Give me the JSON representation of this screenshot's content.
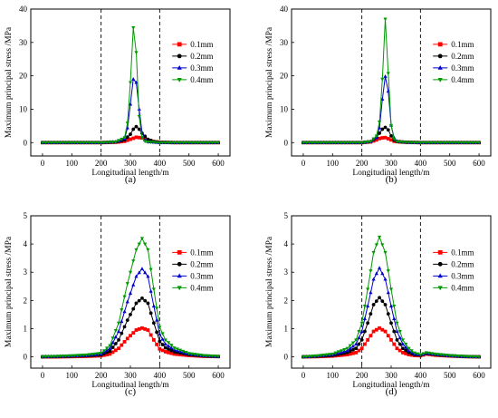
{
  "figure": {
    "series_meta": [
      {
        "name": "0.1mm",
        "color": "#ff0000",
        "marker": "square"
      },
      {
        "name": "0.2mm",
        "color": "#000000",
        "marker": "circle"
      },
      {
        "name": "0.3mm",
        "color": "#0000cc",
        "marker": "triangle-up"
      },
      {
        "name": "0.4mm",
        "color": "#009900",
        "marker": "triangle-down"
      }
    ]
  },
  "chart_data": [
    {
      "type": "line",
      "panel_label": "(a)",
      "xlabel": "Longitudinal length/m",
      "ylabel": "Maximum principal stress /MPa",
      "xlim": [
        -40,
        640
      ],
      "ylim": [
        -4,
        40
      ],
      "xticks": [
        0,
        100,
        200,
        300,
        400,
        500,
        600
      ],
      "yticks": [
        0,
        10,
        20,
        30,
        40
      ],
      "vlines": [
        200,
        400
      ],
      "legend_position": "right",
      "series": [
        {
          "name": "0.1mm",
          "x": [
            0,
            100,
            200,
            250,
            280,
            300,
            320,
            340,
            360,
            380,
            400,
            450,
            500,
            600
          ],
          "y": [
            0,
            0,
            0,
            0.1,
            0.4,
            1.0,
            1.6,
            1.4,
            0.8,
            0.3,
            0.1,
            0,
            0,
            0
          ]
        },
        {
          "name": "0.2mm",
          "x": [
            0,
            100,
            200,
            250,
            280,
            300,
            310,
            320,
            330,
            340,
            360,
            380,
            400,
            450,
            500,
            600
          ],
          "y": [
            0,
            0,
            0,
            0.2,
            0.8,
            2.5,
            4.0,
            4.8,
            4.0,
            2.8,
            1.0,
            0.3,
            0.1,
            0,
            0,
            0
          ]
        },
        {
          "name": "0.3mm",
          "x": [
            0,
            100,
            200,
            250,
            280,
            295,
            305,
            315,
            325,
            335,
            345,
            360,
            380,
            400,
            450,
            500,
            600
          ],
          "y": [
            0,
            0,
            0,
            0.2,
            1.2,
            6.0,
            17.0,
            21.0,
            15.0,
            5.0,
            1.0,
            0.3,
            0.1,
            0,
            0,
            0,
            0
          ]
        },
        {
          "name": "0.4mm",
          "x": [
            0,
            100,
            200,
            250,
            280,
            295,
            305,
            312,
            320,
            328,
            335,
            345,
            360,
            380,
            400,
            450,
            500,
            600
          ],
          "y": [
            0,
            0,
            0,
            0.2,
            1.5,
            8.0,
            28.0,
            37.0,
            27.0,
            10.0,
            2.5,
            0.5,
            0.2,
            0.1,
            0,
            0,
            0,
            0
          ]
        }
      ]
    },
    {
      "type": "line",
      "panel_label": "(b)",
      "xlabel": "Longitudinal length/m",
      "ylabel": "Maximum principal stress /MPa",
      "xlim": [
        -40,
        640
      ],
      "ylim": [
        -4,
        40
      ],
      "xticks": [
        0,
        100,
        200,
        300,
        400,
        500,
        600
      ],
      "yticks": [
        0,
        10,
        20,
        30,
        40
      ],
      "vlines": [
        200,
        400
      ],
      "legend_position": "right",
      "series": [
        {
          "name": "0.1mm",
          "x": [
            0,
            100,
            200,
            230,
            250,
            265,
            280,
            295,
            310,
            330,
            350,
            400,
            450,
            500,
            600
          ],
          "y": [
            0,
            0,
            0,
            0.2,
            0.8,
            1.4,
            1.5,
            1.0,
            0.4,
            0.2,
            0.1,
            0,
            0,
            0,
            0
          ]
        },
        {
          "name": "0.2mm",
          "x": [
            0,
            100,
            200,
            230,
            250,
            265,
            275,
            285,
            295,
            305,
            320,
            350,
            400,
            450,
            500,
            600
          ],
          "y": [
            0,
            0,
            0,
            0.3,
            1.5,
            3.5,
            4.5,
            4.6,
            3.0,
            1.0,
            0.3,
            0.1,
            0,
            0,
            0,
            0
          ]
        },
        {
          "name": "0.3mm",
          "x": [
            0,
            100,
            200,
            230,
            250,
            262,
            272,
            282,
            292,
            302,
            315,
            350,
            400,
            450,
            500,
            600
          ],
          "y": [
            0,
            0,
            0,
            0.3,
            1.5,
            5.0,
            15.0,
            21.0,
            14.0,
            3.0,
            0.5,
            0.1,
            0,
            0,
            0,
            0
          ]
        },
        {
          "name": "0.4mm",
          "x": [
            0,
            100,
            200,
            230,
            250,
            262,
            272,
            280,
            288,
            296,
            305,
            320,
            350,
            400,
            450,
            500,
            600
          ],
          "y": [
            0,
            0,
            0,
            0.3,
            2.0,
            7.0,
            22.0,
            37.0,
            25.0,
            8.0,
            1.5,
            0.3,
            0.1,
            0,
            0,
            0,
            0
          ]
        }
      ]
    },
    {
      "type": "line",
      "panel_label": "(c)",
      "xlabel": "Longitudinal length/m",
      "ylabel": "Maximum principal stress /MPa",
      "xlim": [
        -40,
        640
      ],
      "ylim": [
        -0.4,
        5
      ],
      "xticks": [
        0,
        100,
        200,
        300,
        400,
        500,
        600
      ],
      "yticks": [
        0,
        1,
        2,
        3,
        4,
        5
      ],
      "vlines": [
        200,
        400
      ],
      "legend_position": "right",
      "series": [
        {
          "name": "0.1mm",
          "x": [
            0,
            50,
            100,
            150,
            200,
            230,
            260,
            290,
            320,
            340,
            360,
            380,
            400,
            420,
            450,
            500,
            550,
            600
          ],
          "y": [
            0,
            0,
            0.01,
            0.02,
            0.04,
            0.1,
            0.3,
            0.65,
            0.95,
            1.02,
            0.95,
            0.6,
            0.28,
            0.18,
            0.1,
            0.05,
            0.02,
            0.01
          ]
        },
        {
          "name": "0.2mm",
          "x": [
            0,
            50,
            100,
            150,
            200,
            230,
            260,
            290,
            320,
            340,
            360,
            380,
            400,
            420,
            450,
            500,
            550,
            600
          ],
          "y": [
            0,
            0.01,
            0.02,
            0.04,
            0.07,
            0.2,
            0.6,
            1.3,
            1.9,
            2.08,
            1.9,
            1.2,
            0.55,
            0.32,
            0.18,
            0.08,
            0.03,
            0.01
          ]
        },
        {
          "name": "0.3mm",
          "x": [
            0,
            50,
            100,
            150,
            200,
            230,
            260,
            290,
            320,
            340,
            360,
            380,
            400,
            420,
            450,
            500,
            550,
            600
          ],
          "y": [
            0.01,
            0.02,
            0.03,
            0.05,
            0.1,
            0.3,
            0.9,
            1.95,
            2.85,
            3.12,
            2.85,
            1.8,
            0.8,
            0.45,
            0.25,
            0.1,
            0.04,
            0.01
          ]
        },
        {
          "name": "0.4mm",
          "x": [
            0,
            50,
            100,
            150,
            200,
            230,
            260,
            290,
            320,
            340,
            360,
            380,
            400,
            420,
            450,
            500,
            550,
            600
          ],
          "y": [
            0.01,
            0.02,
            0.04,
            0.07,
            0.13,
            0.4,
            1.2,
            2.6,
            3.8,
            4.2,
            3.8,
            2.4,
            1.05,
            0.6,
            0.32,
            0.12,
            0.05,
            0.02
          ]
        }
      ]
    },
    {
      "type": "line",
      "panel_label": "(d)",
      "xlabel": "Longitudinal length/m",
      "ylabel": "Maximum principal stress /MPa",
      "xlim": [
        -40,
        640
      ],
      "ylim": [
        -0.4,
        5
      ],
      "xticks": [
        0,
        100,
        200,
        300,
        400,
        500,
        600
      ],
      "yticks": [
        0,
        1,
        2,
        3,
        4,
        5
      ],
      "vlines": [
        200,
        400
      ],
      "legend_position": "right",
      "series": [
        {
          "name": "0.1mm",
          "x": [
            0,
            50,
            100,
            150,
            180,
            200,
            220,
            240,
            260,
            280,
            300,
            320,
            340,
            360,
            380,
            400,
            420,
            450,
            500,
            550,
            600
          ],
          "y": [
            0,
            0.01,
            0.03,
            0.08,
            0.15,
            0.3,
            0.6,
            0.9,
            1.02,
            0.9,
            0.6,
            0.3,
            0.15,
            0.08,
            0.05,
            0.04,
            0.1,
            0.06,
            0.03,
            0.01,
            0
          ]
        },
        {
          "name": "0.2mm",
          "x": [
            0,
            50,
            100,
            150,
            180,
            200,
            220,
            240,
            260,
            280,
            300,
            320,
            340,
            360,
            380,
            400,
            420,
            450,
            500,
            550,
            600
          ],
          "y": [
            0,
            0.02,
            0.05,
            0.15,
            0.3,
            0.6,
            1.2,
            1.85,
            2.1,
            1.85,
            1.2,
            0.6,
            0.3,
            0.15,
            0.08,
            0.06,
            0.12,
            0.08,
            0.04,
            0.01,
            0
          ]
        },
        {
          "name": "0.3mm",
          "x": [
            0,
            50,
            100,
            150,
            180,
            200,
            220,
            240,
            260,
            280,
            300,
            320,
            340,
            360,
            380,
            400,
            420,
            450,
            500,
            550,
            600
          ],
          "y": [
            0,
            0.03,
            0.08,
            0.22,
            0.45,
            0.9,
            1.8,
            2.75,
            3.15,
            2.75,
            1.8,
            0.9,
            0.45,
            0.22,
            0.1,
            0.07,
            0.13,
            0.09,
            0.04,
            0.01,
            0
          ]
        },
        {
          "name": "0.4mm",
          "x": [
            0,
            50,
            100,
            150,
            180,
            200,
            220,
            240,
            260,
            280,
            300,
            320,
            340,
            360,
            380,
            400,
            420,
            450,
            500,
            550,
            600
          ],
          "y": [
            0,
            0.04,
            0.1,
            0.3,
            0.6,
            1.2,
            2.4,
            3.7,
            4.25,
            3.7,
            2.4,
            1.2,
            0.6,
            0.3,
            0.14,
            0.08,
            0.15,
            0.1,
            0.05,
            0.02,
            0
          ]
        }
      ]
    }
  ]
}
